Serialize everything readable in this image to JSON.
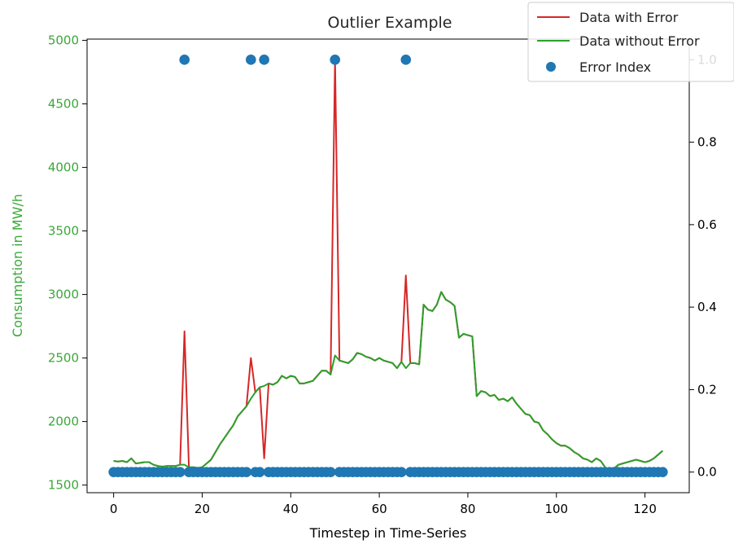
{
  "chart_data": {
    "type": "line",
    "title": "Outlier Example",
    "xlabel": "Timestep in Time-Series",
    "ylabel": "Consumption in MW/h",
    "xlim": [
      -6,
      130
    ],
    "ylim": [
      1440,
      5010
    ],
    "y2lim": [
      -0.05,
      1.05
    ],
    "x_ticks": [
      0,
      20,
      40,
      60,
      80,
      100,
      120
    ],
    "y_ticks": [
      1500,
      2000,
      2500,
      3000,
      3500,
      4000,
      4500,
      5000
    ],
    "y2_ticks": [
      0.0,
      0.2,
      0.4,
      0.6,
      0.8,
      1.0
    ],
    "x_tick_labels": [
      "0",
      "20",
      "40",
      "60",
      "80",
      "100",
      "120"
    ],
    "y_tick_labels": [
      "1500",
      "2000",
      "2500",
      "3000",
      "3500",
      "4000",
      "4500",
      "5000"
    ],
    "y2_tick_labels": [
      "0.0",
      "0.2",
      "0.4",
      "0.6",
      "0.8",
      "1.0"
    ],
    "grid": false,
    "legend_position": "top-right",
    "x": [
      0,
      1,
      2,
      3,
      4,
      5,
      6,
      7,
      8,
      9,
      10,
      11,
      12,
      13,
      14,
      15,
      16,
      17,
      18,
      19,
      20,
      21,
      22,
      23,
      24,
      25,
      26,
      27,
      28,
      29,
      30,
      31,
      32,
      33,
      34,
      35,
      36,
      37,
      38,
      39,
      40,
      41,
      42,
      43,
      44,
      45,
      46,
      47,
      48,
      49,
      50,
      51,
      52,
      53,
      54,
      55,
      56,
      57,
      58,
      59,
      60,
      61,
      62,
      63,
      64,
      65,
      66,
      67,
      68,
      69,
      70,
      71,
      72,
      73,
      74,
      75,
      76,
      77,
      78,
      79,
      80,
      81,
      82,
      83,
      84,
      85,
      86,
      87,
      88,
      89,
      90,
      91,
      92,
      93,
      94,
      95,
      96,
      97,
      98,
      99,
      100,
      101,
      102,
      103,
      104,
      105,
      106,
      107,
      108,
      109,
      110,
      111,
      112,
      113,
      114,
      115,
      116,
      117,
      118,
      119,
      120,
      121,
      122,
      123,
      124
    ],
    "series": [
      {
        "name": "Data with Error",
        "color": "#d62728",
        "axis": "left",
        "values": [
          1690,
          1685,
          1690,
          1680,
          1710,
          1670,
          1675,
          1680,
          1680,
          1660,
          1650,
          1645,
          1650,
          1650,
          1650,
          1660,
          2710,
          1640,
          1640,
          1635,
          1640,
          1670,
          1700,
          1760,
          1820,
          1870,
          1920,
          1970,
          2040,
          2080,
          2120,
          2500,
          2230,
          2270,
          1710,
          2300,
          2290,
          2310,
          2360,
          2340,
          2360,
          2350,
          2300,
          2300,
          2310,
          2320,
          2360,
          2400,
          2400,
          2370,
          4850,
          2480,
          2470,
          2460,
          2490,
          2540,
          2530,
          2510,
          2500,
          2480,
          2500,
          2480,
          2470,
          2460,
          2420,
          2470,
          3150,
          2460,
          2460,
          2450,
          2920,
          2880,
          2870,
          2920,
          3020,
          2960,
          2940,
          2910,
          2660,
          2690,
          2680,
          2670,
          2200,
          2240,
          2230,
          2200,
          2210,
          2170,
          2180,
          2160,
          2190,
          2140,
          2100,
          2060,
          2050,
          2000,
          1990,
          1930,
          1900,
          1860,
          1830,
          1810,
          1810,
          1790,
          1760,
          1740,
          1710,
          1700,
          1680,
          1710,
          1690,
          1640,
          1610,
          1630,
          1660,
          1670,
          1680,
          1690,
          1700,
          1690,
          1680,
          1690,
          1710,
          1740,
          1770
        ]
      },
      {
        "name": "Data without Error",
        "color": "#2ca02c",
        "axis": "left",
        "values": [
          1690,
          1685,
          1690,
          1680,
          1710,
          1670,
          1675,
          1680,
          1680,
          1660,
          1650,
          1645,
          1650,
          1650,
          1650,
          1660,
          1660,
          1640,
          1640,
          1635,
          1640,
          1670,
          1700,
          1760,
          1820,
          1870,
          1920,
          1970,
          2040,
          2080,
          2120,
          2180,
          2230,
          2270,
          2280,
          2300,
          2290,
          2310,
          2360,
          2340,
          2360,
          2350,
          2300,
          2300,
          2310,
          2320,
          2360,
          2400,
          2400,
          2370,
          2520,
          2480,
          2470,
          2460,
          2490,
          2540,
          2530,
          2510,
          2500,
          2480,
          2500,
          2480,
          2470,
          2460,
          2420,
          2470,
          2420,
          2460,
          2460,
          2450,
          2920,
          2880,
          2870,
          2920,
          3020,
          2960,
          2940,
          2910,
          2660,
          2690,
          2680,
          2670,
          2200,
          2240,
          2230,
          2200,
          2210,
          2170,
          2180,
          2160,
          2190,
          2140,
          2100,
          2060,
          2050,
          2000,
          1990,
          1930,
          1900,
          1860,
          1830,
          1810,
          1810,
          1790,
          1760,
          1740,
          1710,
          1700,
          1680,
          1710,
          1690,
          1640,
          1610,
          1630,
          1660,
          1670,
          1680,
          1690,
          1700,
          1690,
          1680,
          1690,
          1710,
          1740,
          1770
        ]
      },
      {
        "name": "Error Index",
        "color": "#1f77b4",
        "axis": "right",
        "kind": "scatter",
        "values": [
          0,
          0,
          0,
          0,
          0,
          0,
          0,
          0,
          0,
          0,
          0,
          0,
          0,
          0,
          0,
          0,
          1,
          0,
          0,
          0,
          0,
          0,
          0,
          0,
          0,
          0,
          0,
          0,
          0,
          0,
          0,
          1,
          0,
          0,
          1,
          0,
          0,
          0,
          0,
          0,
          0,
          0,
          0,
          0,
          0,
          0,
          0,
          0,
          0,
          0,
          1,
          0,
          0,
          0,
          0,
          0,
          0,
          0,
          0,
          0,
          0,
          0,
          0,
          0,
          0,
          0,
          1,
          0,
          0,
          0,
          0,
          0,
          0,
          0,
          0,
          0,
          0,
          0,
          0,
          0,
          0,
          0,
          0,
          0,
          0,
          0,
          0,
          0,
          0,
          0,
          0,
          0,
          0,
          0,
          0,
          0,
          0,
          0,
          0,
          0,
          0,
          0,
          0,
          0,
          0,
          0,
          0,
          0,
          0,
          0,
          0,
          0,
          0,
          0,
          0,
          0,
          0,
          0,
          0,
          0,
          0,
          0,
          0,
          0,
          0
        ]
      }
    ],
    "axis_colors": {
      "left_label": "#3aa83a",
      "right_label": "#000000",
      "x_label": "#000000"
    }
  }
}
